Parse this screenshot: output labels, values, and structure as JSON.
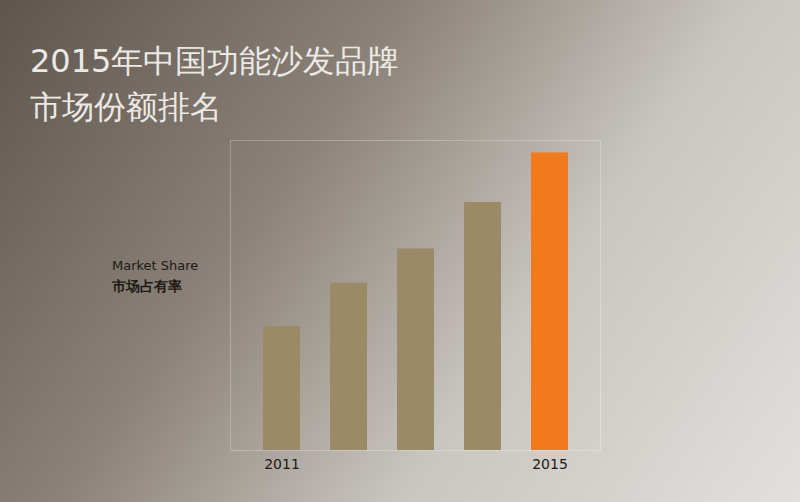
{
  "chart_data": {
    "type": "bar",
    "title": "2015年中国功能沙发品牌\n市场份额排名",
    "y_label": [
      "Market Share",
      "市场占有率"
    ],
    "categories": [
      "2011",
      null,
      null,
      null,
      "2015"
    ],
    "values": [
      40,
      54,
      65,
      80,
      96
    ],
    "colors": [
      "#9a8a68",
      "#9a8a68",
      "#9a8a68",
      "#9a8a68",
      "#f27a1e"
    ],
    "ylim": [
      0,
      100
    ],
    "tick_labels": "x",
    "data_labels": false,
    "grid": false
  }
}
